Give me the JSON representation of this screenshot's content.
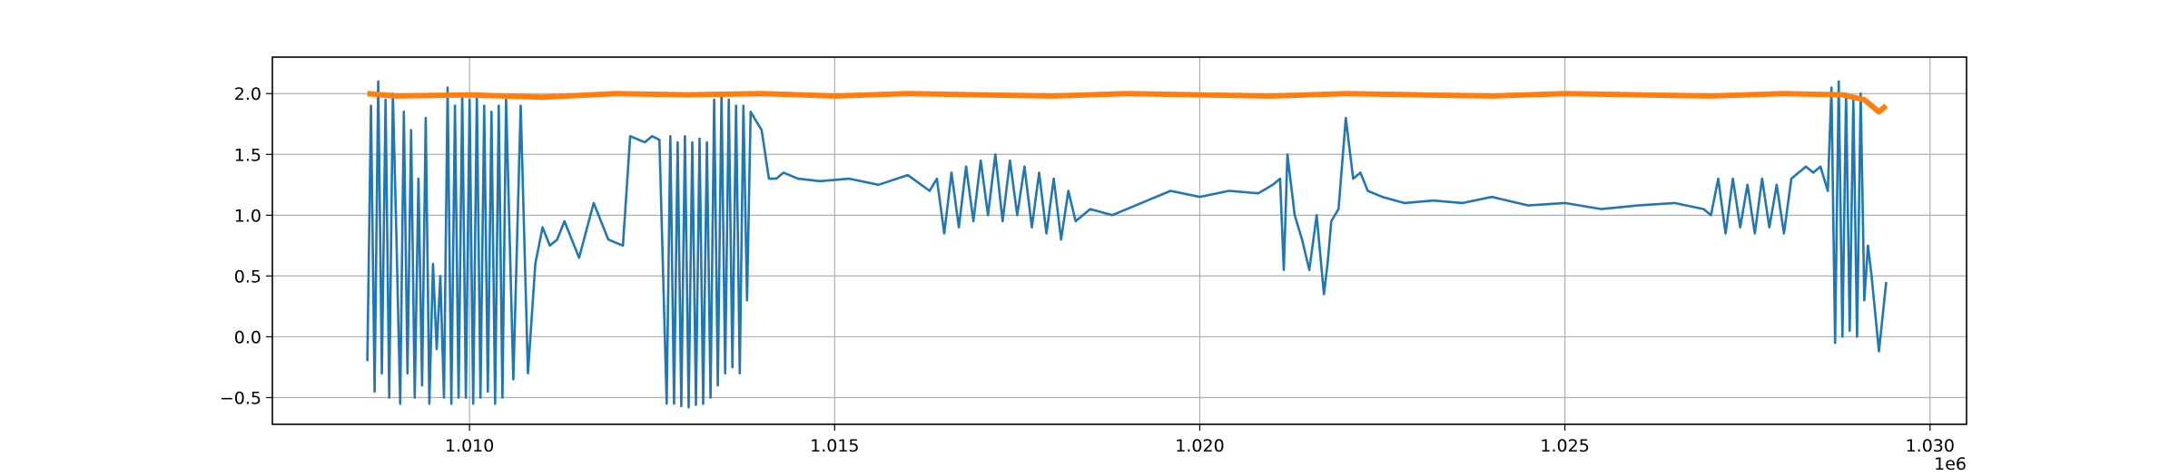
{
  "chart_data": {
    "type": "line",
    "title": "",
    "xlabel": "",
    "ylabel": "",
    "x_offset_label": "1e6",
    "xlim": [
      1007300,
      1030500
    ],
    "ylim": [
      -0.72,
      2.3
    ],
    "grid": true,
    "x_ticks": [
      {
        "value": 1010000,
        "label": "1.010"
      },
      {
        "value": 1015000,
        "label": "1.015"
      },
      {
        "value": 1020000,
        "label": "1.020"
      },
      {
        "value": 1025000,
        "label": "1.025"
      },
      {
        "value": 1030000,
        "label": "1.030"
      }
    ],
    "y_ticks": [
      {
        "value": -0.5,
        "label": "−0.5"
      },
      {
        "value": 0.0,
        "label": "0.0"
      },
      {
        "value": 0.5,
        "label": "0.5"
      },
      {
        "value": 1.0,
        "label": "1.0"
      },
      {
        "value": 1.5,
        "label": "1.5"
      },
      {
        "value": 2.0,
        "label": "2.0"
      }
    ],
    "series": [
      {
        "color": "#1f77b4",
        "x": [
          1008600,
          1008650,
          1008700,
          1008750,
          1008800,
          1008850,
          1008900,
          1008950,
          1009000,
          1009050,
          1009100,
          1009150,
          1009200,
          1009250,
          1009300,
          1009350,
          1009400,
          1009450,
          1009500,
          1009550,
          1009600,
          1009650,
          1009700,
          1009750,
          1009800,
          1009850,
          1009900,
          1009950,
          1010000,
          1010050,
          1010100,
          1010150,
          1010200,
          1010250,
          1010300,
          1010350,
          1010400,
          1010450,
          1010500,
          1010600,
          1010700,
          1010800,
          1010900,
          1011000,
          1011100,
          1011200,
          1011300,
          1011500,
          1011700,
          1011900,
          1012100,
          1012200,
          1012400,
          1012500,
          1012600,
          1012700,
          1012750,
          1012800,
          1012850,
          1012900,
          1012950,
          1013000,
          1013050,
          1013100,
          1013150,
          1013200,
          1013250,
          1013300,
          1013350,
          1013400,
          1013450,
          1013500,
          1013550,
          1013600,
          1013650,
          1013700,
          1013750,
          1013800,
          1013850,
          1013900,
          1013950,
          1014000,
          1014100,
          1014200,
          1014300,
          1014500,
          1014800,
          1015200,
          1015600,
          1016000,
          1016300,
          1016400,
          1016500,
          1016600,
          1016700,
          1016800,
          1016900,
          1017000,
          1017100,
          1017200,
          1017300,
          1017400,
          1017500,
          1017600,
          1017700,
          1017800,
          1017900,
          1018000,
          1018100,
          1018200,
          1018300,
          1018500,
          1018800,
          1019200,
          1019600,
          1020000,
          1020400,
          1020800,
          1021000,
          1021100,
          1021150,
          1021200,
          1021300,
          1021400,
          1021500,
          1021600,
          1021700,
          1021750,
          1021800,
          1021900,
          1022000,
          1022100,
          1022200,
          1022300,
          1022500,
          1022800,
          1023200,
          1023600,
          1024000,
          1024500,
          1025000,
          1025500,
          1026000,
          1026500,
          1026900,
          1027000,
          1027100,
          1027200,
          1027300,
          1027400,
          1027500,
          1027600,
          1027700,
          1027800,
          1027900,
          1028000,
          1028100,
          1028200,
          1028300,
          1028400,
          1028500,
          1028600,
          1028650,
          1028700,
          1028750,
          1028800,
          1028850,
          1028900,
          1028950,
          1029000,
          1029050,
          1029100,
          1029150,
          1029200,
          1029300,
          1029400
        ],
        "y": [
          -0.2,
          1.9,
          -0.45,
          2.1,
          -0.3,
          1.95,
          -0.5,
          2.0,
          0.8,
          -0.55,
          1.85,
          -0.3,
          1.7,
          -0.5,
          1.3,
          -0.4,
          1.8,
          -0.55,
          0.6,
          -0.1,
          0.5,
          -0.5,
          2.05,
          -0.55,
          1.9,
          -0.5,
          2.0,
          -0.5,
          1.95,
          -0.55,
          2.0,
          -0.5,
          1.9,
          -0.45,
          1.85,
          -0.55,
          1.9,
          -0.5,
          1.95,
          -0.35,
          1.9,
          -0.3,
          0.6,
          0.9,
          0.75,
          0.8,
          0.95,
          0.65,
          1.1,
          0.8,
          0.75,
          1.65,
          1.6,
          1.65,
          1.62,
          -0.55,
          1.65,
          -0.55,
          1.6,
          -0.57,
          1.65,
          -0.58,
          1.6,
          -0.56,
          1.63,
          -0.55,
          1.6,
          -0.5,
          1.95,
          -0.4,
          2.0,
          -0.3,
          1.95,
          -0.25,
          1.9,
          -0.3,
          1.9,
          0.3,
          1.85,
          1.8,
          1.75,
          1.7,
          1.3,
          1.3,
          1.35,
          1.3,
          1.28,
          1.3,
          1.25,
          1.33,
          1.2,
          1.3,
          0.85,
          1.35,
          0.9,
          1.4,
          0.95,
          1.45,
          1.0,
          1.5,
          0.95,
          1.45,
          1.0,
          1.4,
          0.9,
          1.35,
          0.85,
          1.3,
          0.8,
          1.2,
          0.95,
          1.05,
          1.0,
          1.1,
          1.2,
          1.15,
          1.2,
          1.18,
          1.25,
          1.3,
          0.55,
          1.5,
          1.0,
          0.8,
          0.55,
          1.0,
          0.35,
          0.6,
          0.95,
          1.05,
          1.8,
          1.3,
          1.35,
          1.2,
          1.15,
          1.1,
          1.12,
          1.1,
          1.15,
          1.08,
          1.1,
          1.05,
          1.08,
          1.1,
          1.05,
          1.0,
          1.3,
          0.85,
          1.3,
          0.9,
          1.25,
          0.85,
          1.3,
          0.9,
          1.25,
          0.85,
          1.3,
          1.35,
          1.4,
          1.35,
          1.4,
          1.2,
          2.05,
          -0.05,
          2.1,
          0.0,
          2.0,
          0.05,
          1.95,
          0.0,
          2.0,
          0.3,
          0.75,
          0.5,
          -0.12,
          0.45
        ]
      },
      {
        "color": "#ff7f0e",
        "x": [
          1008600,
          1009000,
          1010000,
          1011000,
          1012000,
          1013000,
          1014000,
          1015000,
          1016000,
          1017000,
          1018000,
          1019000,
          1020000,
          1021000,
          1022000,
          1023000,
          1024000,
          1025000,
          1026000,
          1027000,
          1028000,
          1028800,
          1029100,
          1029300,
          1029400
        ],
        "y": [
          2.0,
          1.98,
          1.99,
          1.97,
          2.0,
          1.99,
          2.0,
          1.98,
          2.0,
          1.99,
          1.98,
          2.0,
          1.99,
          1.98,
          2.0,
          1.99,
          1.98,
          2.0,
          1.99,
          1.98,
          2.0,
          1.99,
          1.95,
          1.85,
          1.9
        ]
      }
    ]
  }
}
